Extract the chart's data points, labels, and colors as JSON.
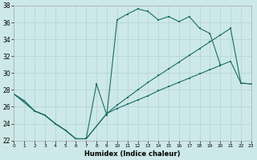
{
  "xlabel": "Humidex (Indice chaleur)",
  "bg_color": "#cde8e8",
  "grid_color": "#b8d4d4",
  "line_color": "#1a6e66",
  "xlim": [
    0,
    23
  ],
  "ylim": [
    22,
    38
  ],
  "x_ticks": [
    0,
    1,
    2,
    3,
    4,
    5,
    6,
    7,
    8,
    9,
    10,
    11,
    12,
    13,
    14,
    15,
    16,
    17,
    18,
    19,
    20,
    21,
    22,
    23
  ],
  "y_ticks": [
    22,
    24,
    26,
    28,
    30,
    32,
    34,
    36,
    38
  ],
  "curve1_x": [
    0,
    1,
    2,
    3,
    4,
    5,
    6,
    7,
    8,
    9,
    10,
    11,
    12,
    13,
    14,
    15,
    16,
    17,
    18,
    19,
    20
  ],
  "curve1_y": [
    27.5,
    26.7,
    25.5,
    25.0,
    24.0,
    23.2,
    22.2,
    22.2,
    28.7,
    25.0,
    36.3,
    37.0,
    37.6,
    37.3,
    36.3,
    36.7,
    36.1,
    36.7,
    35.3,
    34.7,
    31.0
  ],
  "curve2_x": [
    0,
    1,
    2,
    3,
    4,
    5,
    6,
    7,
    9,
    10,
    11,
    12,
    13,
    14,
    15,
    16,
    17,
    18,
    19,
    20,
    21,
    22,
    23
  ],
  "curve2_y": [
    27.5,
    26.7,
    25.5,
    25.0,
    24.0,
    23.2,
    22.2,
    22.2,
    25.2,
    26.2,
    27.1,
    28.0,
    28.9,
    29.7,
    30.5,
    31.3,
    32.1,
    32.9,
    33.7,
    34.5,
    35.3,
    28.8,
    28.7
  ],
  "curve3_x": [
    0,
    2,
    3,
    4,
    5,
    6,
    7,
    9,
    10,
    11,
    12,
    13,
    14,
    15,
    16,
    17,
    18,
    19,
    20,
    21,
    22,
    23
  ],
  "curve3_y": [
    27.5,
    25.5,
    25.0,
    24.0,
    23.2,
    22.2,
    22.2,
    25.2,
    25.8,
    26.3,
    26.8,
    27.3,
    27.9,
    28.4,
    28.9,
    29.4,
    29.9,
    30.4,
    30.9,
    31.4,
    28.8,
    28.7
  ]
}
